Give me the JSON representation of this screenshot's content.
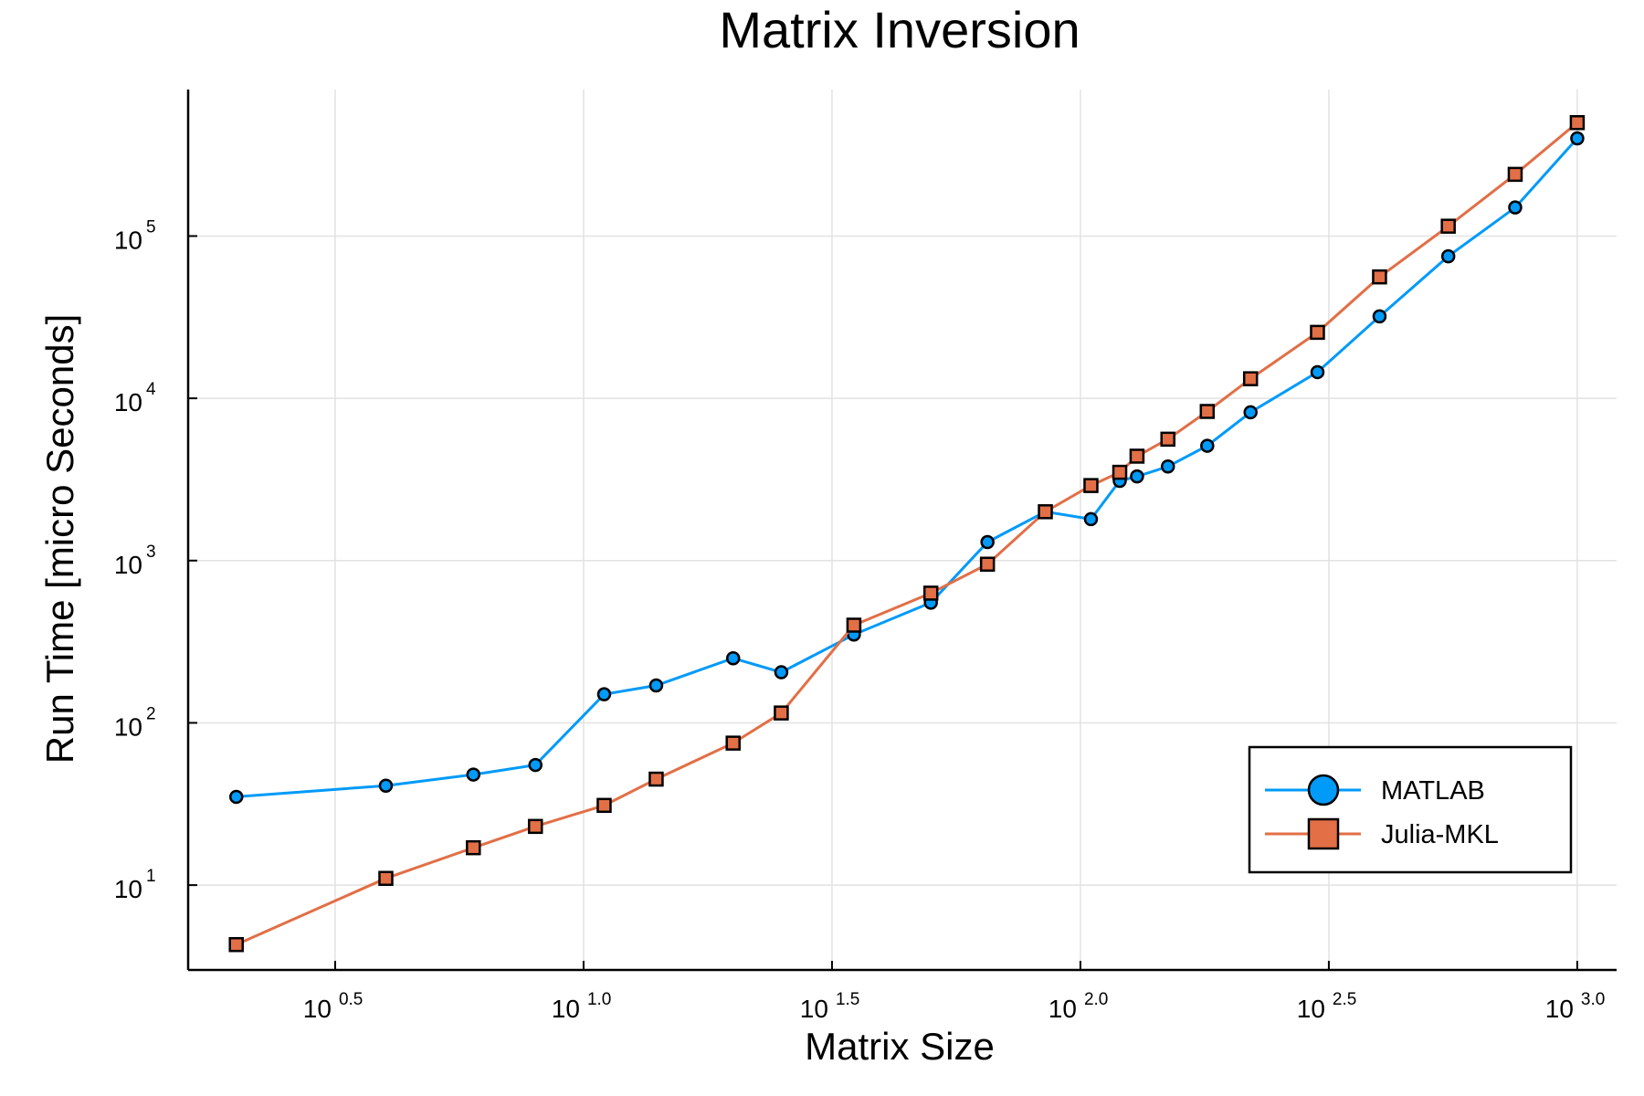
{
  "chart_data": {
    "type": "line",
    "title": "Matrix Inversion",
    "xlabel": "Matrix Size",
    "ylabel": "Run Time  [micro Seconds]",
    "x_scale": "log10",
    "y_scale": "log10",
    "xlim": [
      1.6,
      1200
    ],
    "ylim": [
      3,
      800000
    ],
    "x_ticks": [
      {
        "value": 3.1623,
        "base": "10",
        "exp": "0.5"
      },
      {
        "value": 10,
        "base": "10",
        "exp": "1.0"
      },
      {
        "value": 31.623,
        "base": "10",
        "exp": "1.5"
      },
      {
        "value": 100,
        "base": "10",
        "exp": "2.0"
      },
      {
        "value": 316.23,
        "base": "10",
        "exp": "2.5"
      },
      {
        "value": 1000,
        "base": "10",
        "exp": "3.0"
      }
    ],
    "y_ticks": [
      {
        "value": 10,
        "base": "10",
        "exp": "1"
      },
      {
        "value": 100,
        "base": "10",
        "exp": "2"
      },
      {
        "value": 1000,
        "base": "10",
        "exp": "3"
      },
      {
        "value": 10000,
        "base": "10",
        "exp": "4"
      },
      {
        "value": 100000,
        "base": "10",
        "exp": "5"
      }
    ],
    "grid": true,
    "legend_position": "bottom-right",
    "series": [
      {
        "name": "MATLAB",
        "color": "#009af9",
        "marker": "circle",
        "x": [
          2,
          4,
          6,
          8,
          11,
          14,
          20,
          25,
          35,
          50,
          65,
          85,
          105,
          120,
          130,
          150,
          180,
          220,
          300,
          400,
          550,
          750,
          1000
        ],
        "y": [
          35,
          41,
          48,
          55,
          150,
          170,
          250,
          205,
          350,
          550,
          1300,
          2000,
          1800,
          3100,
          3300,
          3800,
          5100,
          8200,
          14500,
          32000,
          75000,
          150000,
          400000
        ]
      },
      {
        "name": "Julia-MKL",
        "color": "#e26f46",
        "marker": "square",
        "x": [
          2,
          4,
          6,
          8,
          11,
          14,
          20,
          25,
          35,
          50,
          65,
          85,
          105,
          120,
          130,
          150,
          180,
          220,
          300,
          400,
          550,
          750,
          1000
        ],
        "y": [
          4.3,
          11,
          17,
          23,
          31,
          45,
          75,
          115,
          400,
          630,
          950,
          2000,
          2900,
          3500,
          4400,
          5600,
          8300,
          13200,
          25500,
          56000,
          115000,
          240000,
          500000
        ]
      }
    ]
  }
}
